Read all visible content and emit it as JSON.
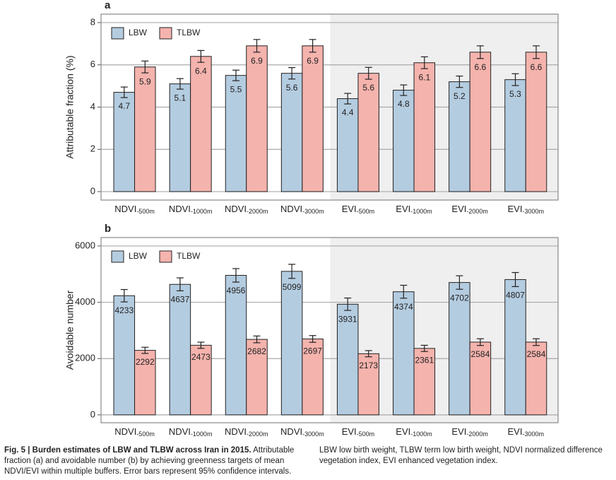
{
  "chart_data": [
    {
      "type": "bar",
      "panel_label": "a",
      "y_label": "Attributable fraction (%)",
      "categories": [
        "NDVI-500m",
        "NDVI-1000m",
        "NDVI-2000m",
        "NDVI-3000m",
        "EVI-500m",
        "EVI-1000m",
        "EVI-2000m",
        "EVI-3000m"
      ],
      "series": [
        {
          "name": "LBW",
          "color": "#b4cce0",
          "values": [
            4.7,
            5.1,
            5.5,
            5.6,
            4.4,
            4.8,
            5.2,
            5.3
          ],
          "errors": [
            0.25,
            0.25,
            0.25,
            0.27,
            0.25,
            0.25,
            0.27,
            0.28
          ]
        },
        {
          "name": "TLBW",
          "color": "#f5b3ad",
          "values": [
            5.9,
            6.4,
            6.9,
            6.9,
            5.6,
            6.1,
            6.6,
            6.6
          ],
          "errors": [
            0.28,
            0.28,
            0.3,
            0.3,
            0.28,
            0.28,
            0.3,
            0.3
          ]
        }
      ],
      "ylim": [
        -0.4,
        8.4
      ],
      "yticks": [
        0,
        2,
        4,
        6,
        8
      ],
      "grid": true,
      "legend": "top-left"
    },
    {
      "type": "bar",
      "panel_label": "b",
      "y_label": "Avoidable number",
      "categories": [
        "NDVI-500m",
        "NDVI-1000m",
        "NDVI-2000m",
        "NDVI-3000m",
        "EVI-500m",
        "EVI-1000m",
        "EVI-2000m",
        "EVI-3000m"
      ],
      "series": [
        {
          "name": "LBW",
          "color": "#b4cce0",
          "values": [
            4233,
            4637,
            4956,
            5099,
            3931,
            4374,
            4702,
            4807
          ],
          "errors": [
            220,
            230,
            240,
            250,
            220,
            230,
            240,
            250
          ]
        },
        {
          "name": "TLBW",
          "color": "#f5b3ad",
          "values": [
            2292,
            2473,
            2682,
            2697,
            2173,
            2361,
            2584,
            2584
          ],
          "errors": [
            110,
            110,
            120,
            120,
            110,
            110,
            120,
            120
          ]
        }
      ],
      "ylim": [
        -280,
        6300
      ],
      "yticks": [
        0,
        2000,
        4000,
        6000
      ],
      "grid": true,
      "legend": "top-left"
    }
  ],
  "caption": {
    "title": "Fig. 5 | Burden estimates of LBW and TLBW across Iran in 2015.",
    "left": "Attributable fraction (a) and avoidable number (b) by achieving greenness targets of mean NDVI/EVI within multiple buffers. Error bars represent 95% confidence intervals.",
    "right": "LBW low birth weight, TLBW term low birth weight, NDVI normalized difference vegetation index, EVI enhanced vegetation index."
  }
}
